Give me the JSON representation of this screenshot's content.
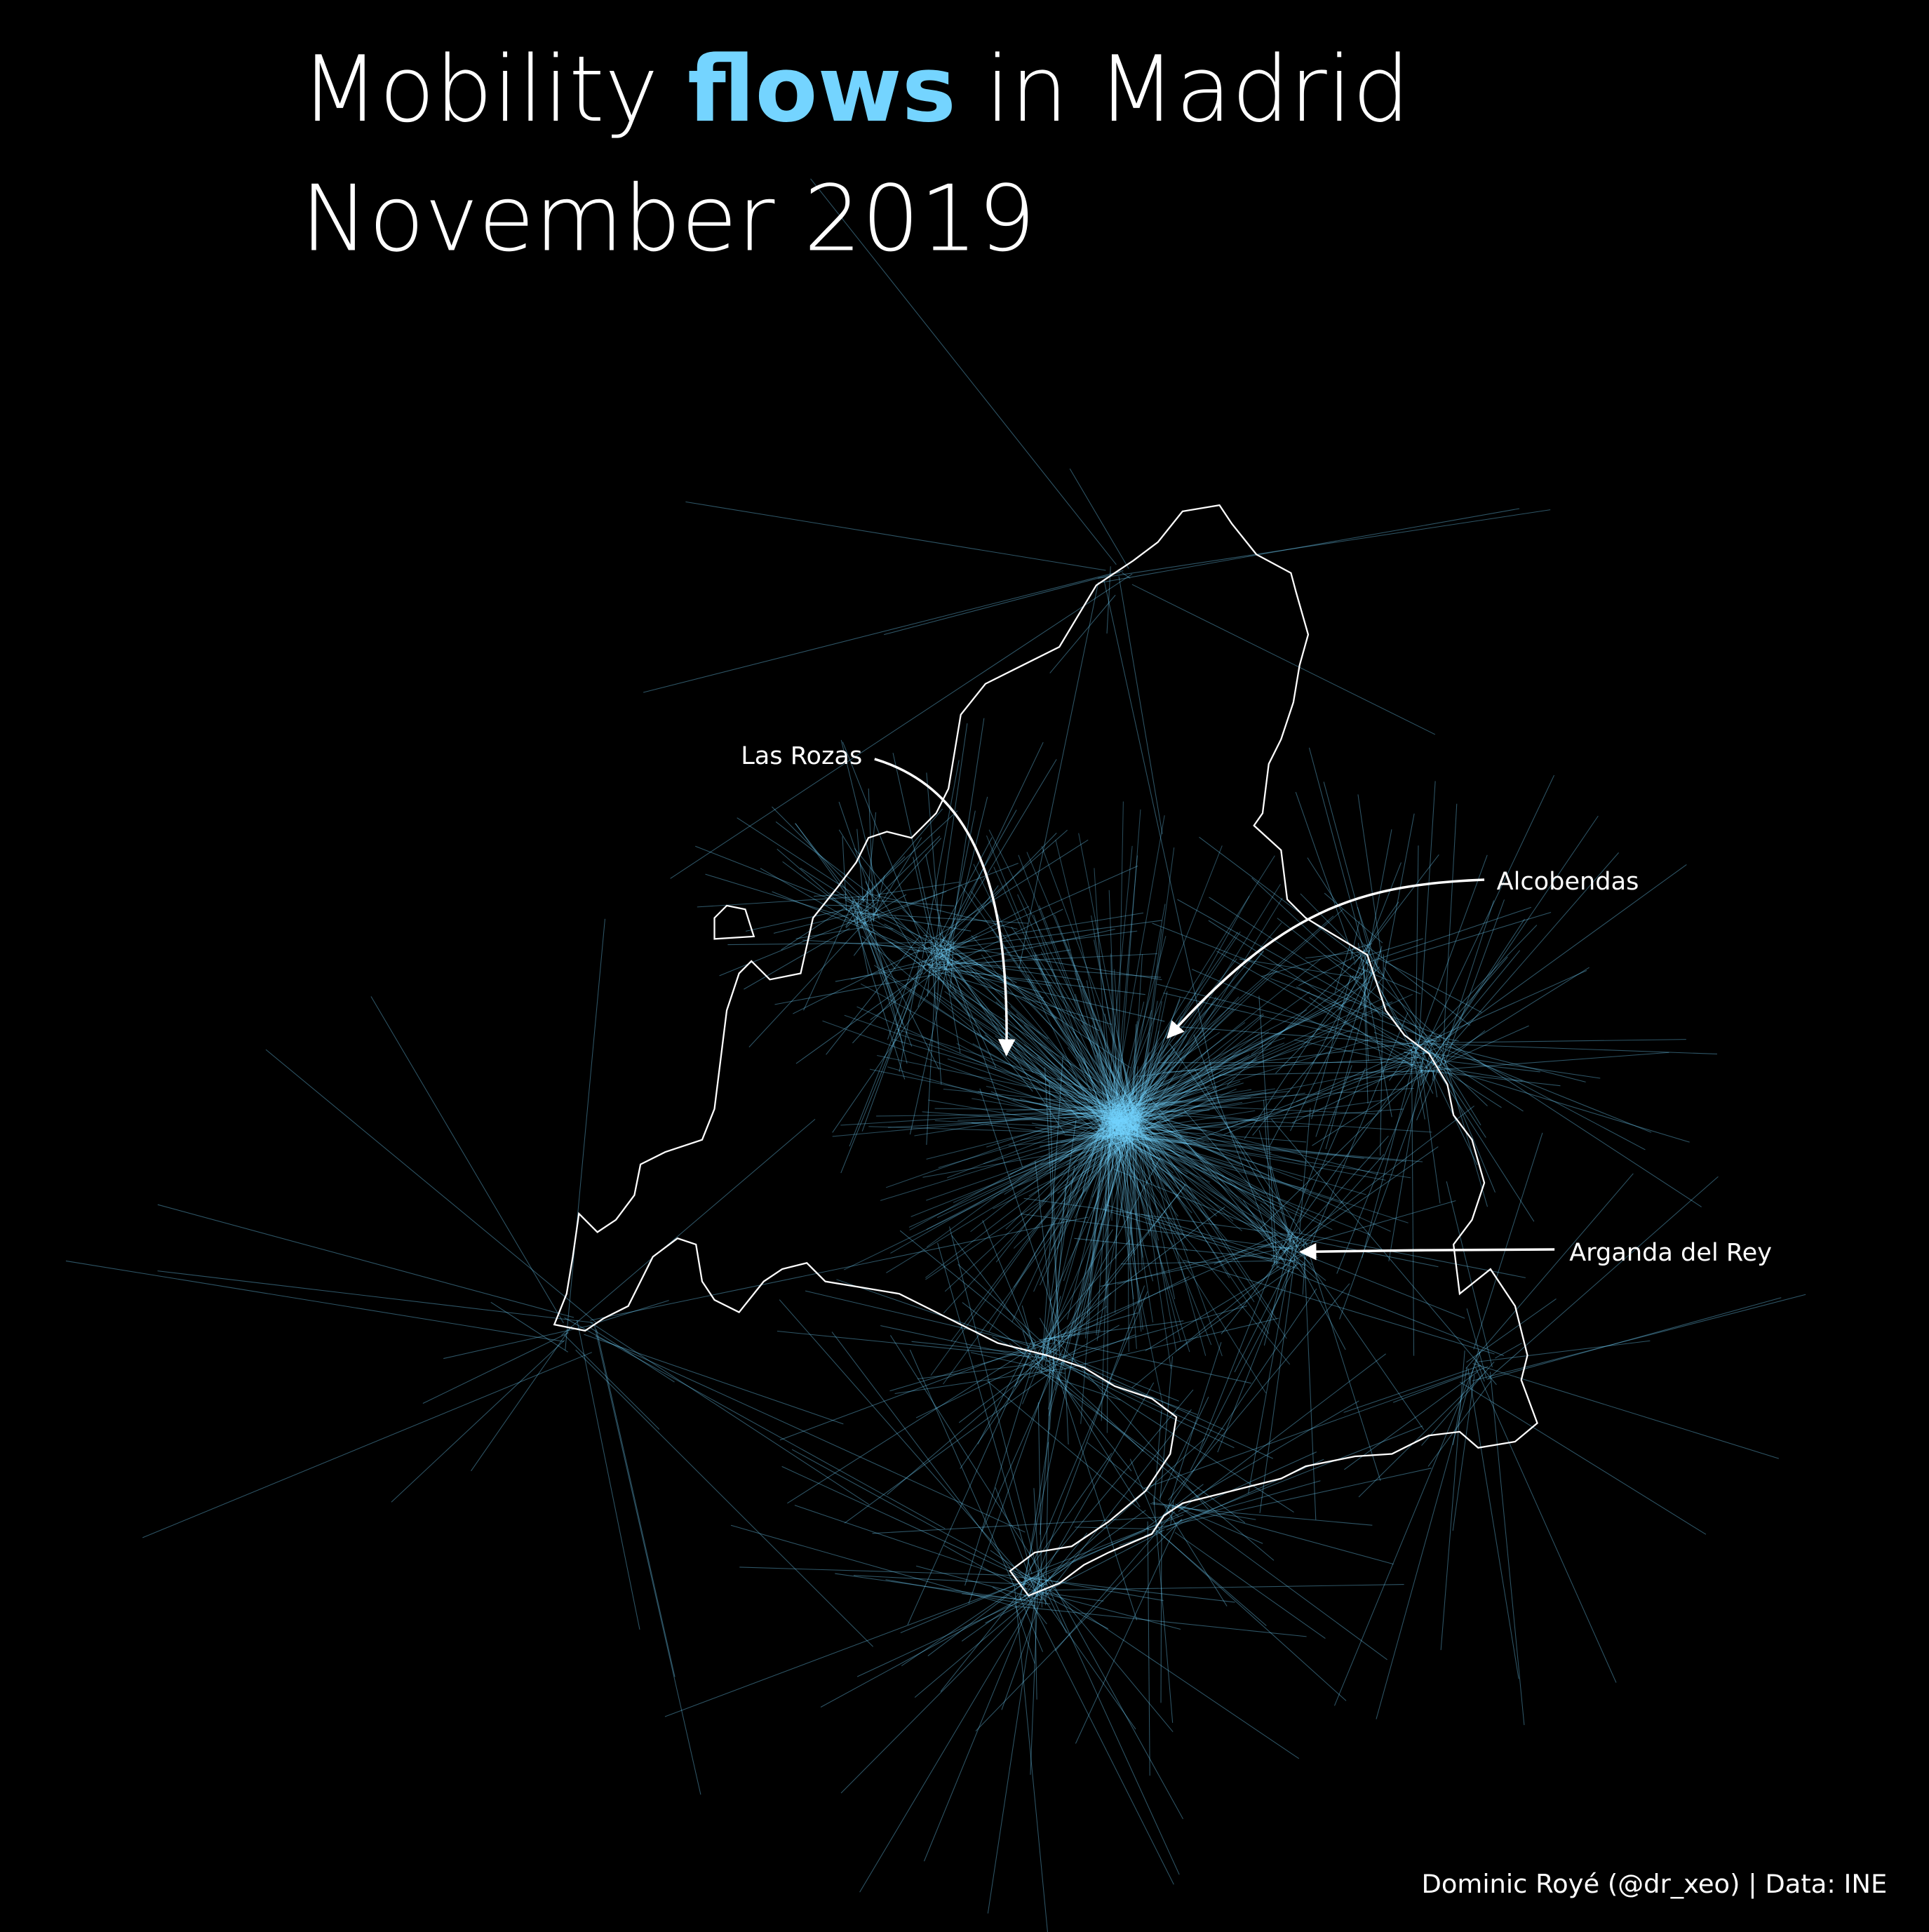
{
  "title": {
    "prefix": "Mobility ",
    "highlight": "flows",
    "suffix": " in Madrid",
    "subtitle": "November 2019",
    "highlight_color": "#74d4ff"
  },
  "map": {
    "background_color": "#000000",
    "outline_color": "#ffffff",
    "flow_color": "#74d4ff",
    "annotations": [
      {
        "label": "Las Rozas"
      },
      {
        "label": "Alcobendas"
      },
      {
        "label": "Arganda del Rey"
      }
    ]
  },
  "credit": "Dominic Royé (@dr_xeo) | Data: INE"
}
